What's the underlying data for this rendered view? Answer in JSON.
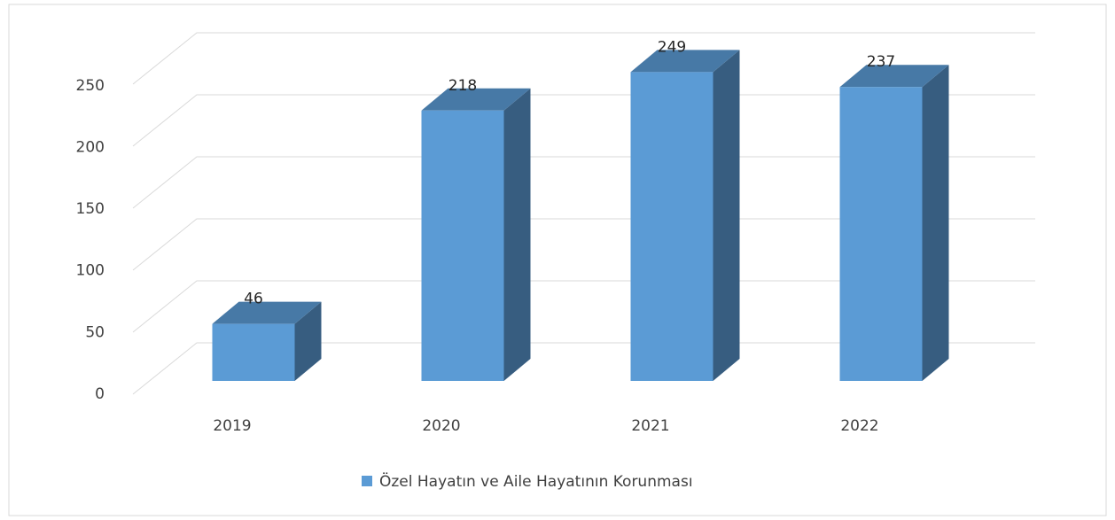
{
  "chart_data": {
    "type": "bar3d",
    "categories": [
      "2019",
      "2020",
      "2021",
      "2022"
    ],
    "series": [
      {
        "name": "Özel Hayatın ve Aile Hayatının Korunması",
        "color": "#5b9bd5",
        "values": [
          46,
          218,
          249,
          237
        ]
      }
    ],
    "ylim": [
      0,
      250
    ],
    "yticks": [
      0,
      50,
      100,
      150,
      200,
      250
    ],
    "grid": true,
    "legend": "bottom"
  }
}
